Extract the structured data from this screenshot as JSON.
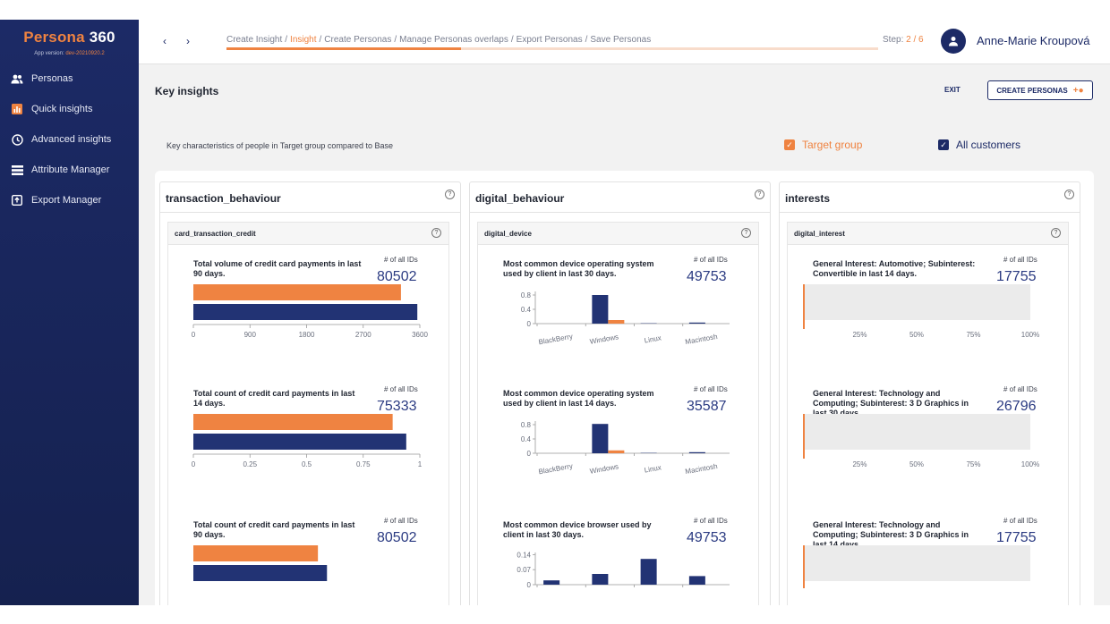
{
  "app": {
    "brand_p": "Persona",
    "brand_n": " 360",
    "version_label": "App version: ",
    "version": "dev-20210920.2"
  },
  "sidebar": {
    "items": [
      {
        "label": "Personas",
        "icon": "users-icon"
      },
      {
        "label": "Quick insights",
        "icon": "bar-chart-icon"
      },
      {
        "label": "Advanced insights",
        "icon": "clock-icon"
      },
      {
        "label": "Attribute Manager",
        "icon": "list-icon"
      },
      {
        "label": "Export Manager",
        "icon": "export-icon"
      }
    ]
  },
  "topbar": {
    "prev": "‹",
    "next": "›",
    "breadcrumb": [
      "Create Insight",
      "Insight",
      "Create Personas",
      "Manage Personas overlaps",
      "Export Personas",
      "Save Personas"
    ],
    "separator": "/",
    "step_label": "Step: ",
    "step_current": "2",
    "step_total": " / 6",
    "progress": 0.36,
    "user": "Anne-Marie Kroupová"
  },
  "page": {
    "title": "Key insights",
    "exit": "EXIT",
    "create_personas": "CREATE PERSONAS",
    "description": "Key characteristics of people in Target group compared to Base",
    "target_group": "Target group",
    "all_customers": "All customers"
  },
  "colors": {
    "target": "#ef8341",
    "base": "#223374",
    "navy": "#1c2a66"
  },
  "columns": [
    {
      "title": "transaction_behaviour",
      "subtitle": "card_transaction_credit",
      "cards": [
        {
          "title": "Total volume of credit card payments in last 90 days.",
          "all_label": "# of all IDs",
          "count": "80502"
        },
        {
          "title": "Total count of credit card payments in last 14 days.",
          "all_label": "# of all IDs",
          "count": "75333"
        },
        {
          "title": "Total count of credit card payments in last 90 days.",
          "all_label": "# of all IDs",
          "count": "80502"
        }
      ]
    },
    {
      "title": "digital_behaviour",
      "subtitle": "digital_device",
      "cards": [
        {
          "title": "Most common device operating system used by client in last 30 days.",
          "all_label": "# of all IDs",
          "count": "49753"
        },
        {
          "title": "Most common device operating system used by client in last 14 days.",
          "all_label": "# of all IDs",
          "count": "35587"
        },
        {
          "title": "Most common device browser used by client in last 30 days.",
          "all_label": "# of all IDs",
          "count": "49753"
        }
      ]
    },
    {
      "title": "interests",
      "subtitle": "digital_interest",
      "cards": [
        {
          "title": "General Interest: Automotive; Subinterest: Convertible in last 14 days.",
          "all_label": "# of all IDs",
          "count": "17755"
        },
        {
          "title": "General Interest: Technology and Computing; Subinterest: 3 D Graphics in last 30 days.",
          "all_label": "# of all IDs",
          "count": "26796"
        },
        {
          "title": "General Interest: Technology and Computing; Subinterest: 3 D Graphics in last 14 days.",
          "all_label": "# of all IDs",
          "count": "17755"
        }
      ]
    }
  ],
  "chart_data": [
    {
      "type": "bar",
      "orientation": "horizontal",
      "title": "Total volume of credit card payments in last 90 days.",
      "ticks": [
        "0",
        "900",
        "1800",
        "2700",
        "3600"
      ],
      "xlim": [
        0,
        3600
      ],
      "series": [
        {
          "name": "Target group",
          "values": [
            3300
          ]
        },
        {
          "name": "All customers",
          "values": [
            3560
          ]
        }
      ]
    },
    {
      "type": "bar",
      "orientation": "horizontal",
      "title": "Total count of credit card payments in last 14 days.",
      "ticks": [
        "0",
        "0.25",
        "0.5",
        "0.75",
        "1"
      ],
      "xlim": [
        0,
        1
      ],
      "series": [
        {
          "name": "Target group",
          "values": [
            0.88
          ]
        },
        {
          "name": "All customers",
          "values": [
            0.94
          ]
        }
      ]
    },
    {
      "type": "bar",
      "orientation": "horizontal",
      "title": "Total count of credit card payments in last 90 days.",
      "xlim": [
        0,
        1
      ],
      "series": [
        {
          "name": "Target group",
          "values": [
            0.55
          ]
        },
        {
          "name": "All customers",
          "values": [
            0.59
          ]
        }
      ]
    },
    {
      "type": "bar",
      "title": "Most common device operating system used by client in last 30 days.",
      "categories": [
        "BlackBerry",
        "Windows",
        "Linux",
        "Macintosh"
      ],
      "yticks": [
        "0",
        "0.4",
        "0.8"
      ],
      "ylim": [
        0,
        0.9
      ],
      "series": [
        {
          "name": "All customers",
          "values": [
            0,
            0.8,
            0.01,
            0.03
          ]
        },
        {
          "name": "Target group",
          "values": [
            0,
            0.1,
            0,
            0
          ]
        }
      ]
    },
    {
      "type": "bar",
      "title": "Most common device operating system used by client in last 14 days.",
      "categories": [
        "BlackBerry",
        "Windows",
        "Linux",
        "Macintosh"
      ],
      "yticks": [
        "0",
        "0.4",
        "0.8"
      ],
      "ylim": [
        0,
        0.9
      ],
      "series": [
        {
          "name": "All customers",
          "values": [
            0,
            0.82,
            0.01,
            0.03
          ]
        },
        {
          "name": "Target group",
          "values": [
            0,
            0.08,
            0,
            0
          ]
        }
      ]
    },
    {
      "type": "bar",
      "title": "Most common device browser used by client in last 30 days.",
      "categories": [
        "",
        "",
        "",
        ""
      ],
      "yticks": [
        "0",
        "0.07",
        "0.14"
      ],
      "ylim": [
        0,
        0.15
      ],
      "series": [
        {
          "name": "All customers",
          "values": [
            0.02,
            0.05,
            0.12,
            0.04
          ]
        },
        {
          "name": "Target group",
          "values": [
            0,
            0,
            0,
            0
          ]
        }
      ]
    },
    {
      "type": "bar",
      "orientation": "horizontal",
      "title": "General Interest: Automotive; Subinterest: Convertible in last 14 days.",
      "ticks": [
        "25%",
        "50%",
        "75%",
        "100%"
      ],
      "xlim": [
        0,
        1
      ],
      "series": [
        {
          "name": "All customers",
          "values": [
            1
          ]
        },
        {
          "name": "Target group",
          "values": [
            0
          ]
        }
      ]
    },
    {
      "type": "bar",
      "orientation": "horizontal",
      "title": "General Interest: Technology and Computing; Subinterest: 3 D Graphics in last 30 days.",
      "ticks": [
        "25%",
        "50%",
        "75%",
        "100%"
      ],
      "xlim": [
        0,
        1
      ],
      "series": [
        {
          "name": "All customers",
          "values": [
            1
          ]
        },
        {
          "name": "Target group",
          "values": [
            0
          ]
        }
      ]
    },
    {
      "type": "bar",
      "orientation": "horizontal",
      "title": "General Interest: Technology and Computing; Subinterest: 3 D Graphics in last 14 days.",
      "xlim": [
        0,
        1
      ],
      "series": [
        {
          "name": "All customers",
          "values": [
            1
          ]
        },
        {
          "name": "Target group",
          "values": [
            0
          ]
        }
      ]
    }
  ]
}
